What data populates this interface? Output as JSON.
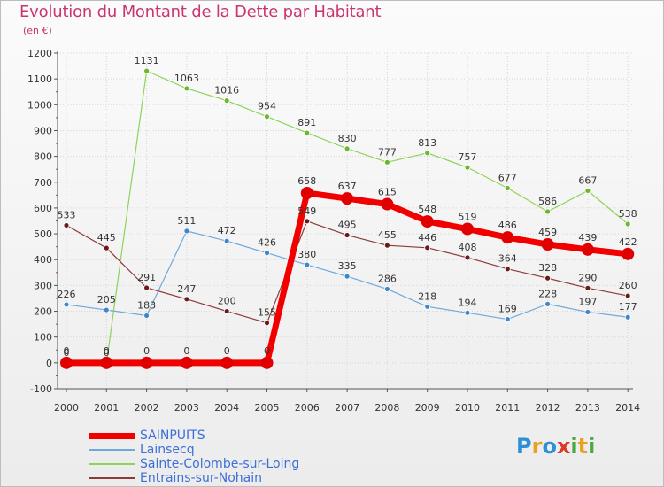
{
  "title": "Evolution du Montant de la Dette par Habitant",
  "subtitle": "(en €)",
  "logo": {
    "text": "Proxiti",
    "letters": [
      {
        "ch": "P",
        "color": "#2e8fd6"
      },
      {
        "ch": "r",
        "color": "#e9a21f"
      },
      {
        "ch": "o",
        "color": "#2e8fd6"
      },
      {
        "ch": "x",
        "color": "#d93a2b"
      },
      {
        "ch": "i",
        "color": "#4aa842"
      },
      {
        "ch": "t",
        "color": "#e9a21f"
      },
      {
        "ch": "i",
        "color": "#4aa842"
      }
    ]
  },
  "chart_data": {
    "type": "line",
    "title": "Evolution du Montant de la Dette par Habitant",
    "subtitle": "(en €)",
    "x": [
      "2000",
      "2001",
      "2002",
      "2003",
      "2004",
      "2005",
      "2006",
      "2007",
      "2008",
      "2009",
      "2010",
      "2011",
      "2012",
      "2013",
      "2014"
    ],
    "ylim": [
      -100,
      1200
    ],
    "yticks": [
      -100,
      0,
      100,
      200,
      300,
      400,
      500,
      600,
      700,
      800,
      900,
      1000,
      1100,
      1200
    ],
    "grid": true,
    "legend_position": "bottom-left",
    "series": [
      {
        "name": "Sainte-Colombe-sur-Loing",
        "color": "#8fd35a",
        "dot": "#6ab82e",
        "width": 1.2,
        "marker": 3,
        "values": [
          0,
          0,
          1131,
          1063,
          1016,
          954,
          891,
          830,
          777,
          813,
          757,
          677,
          586,
          667,
          538
        ],
        "labels": [
          "0",
          "0",
          "1131",
          "1063",
          "1016",
          "954",
          "891",
          "830",
          "777",
          "813",
          "757",
          "677",
          "586",
          "667",
          "538"
        ]
      },
      {
        "name": "Lainsecq",
        "color": "#6fa8dc",
        "dot": "#3f87c8",
        "width": 1.2,
        "marker": 3,
        "values": [
          226,
          205,
          183,
          511,
          472,
          426,
          380,
          335,
          286,
          218,
          194,
          169,
          228,
          197,
          177
        ],
        "labels": [
          "226",
          "205",
          "183",
          "511",
          "472",
          "426",
          "380",
          "335",
          "286",
          "218",
          "194",
          "169",
          "228",
          "197",
          "177"
        ]
      },
      {
        "name": "Entrains-sur-Nohain",
        "color": "#8b3a3a",
        "dot": "#6b1a1a",
        "width": 1.2,
        "marker": 3,
        "values": [
          533,
          445,
          291,
          247,
          200,
          155,
          549,
          495,
          455,
          446,
          408,
          364,
          328,
          290,
          260
        ],
        "labels": [
          "533",
          "445",
          "291",
          "247",
          "200",
          "155",
          "549",
          "495",
          "455",
          "446",
          "408",
          "364",
          "328",
          "290",
          "260"
        ]
      },
      {
        "name": "SAINPUITS",
        "color": "#f20000",
        "dot": "#e00000",
        "width": 7,
        "marker": 7,
        "values": [
          0,
          0,
          0,
          0,
          0,
          0,
          658,
          637,
          615,
          548,
          519,
          486,
          459,
          439,
          422
        ],
        "labels": [
          "0",
          "0",
          "0",
          "0",
          "0",
          "0",
          "658",
          "637",
          "615",
          "548",
          "519",
          "486",
          "459",
          "439",
          "422"
        ]
      }
    ],
    "legend_order": [
      "SAINPUITS",
      "Lainsecq",
      "Sainte-Colombe-sur-Loing",
      "Entrains-sur-Nohain"
    ]
  }
}
